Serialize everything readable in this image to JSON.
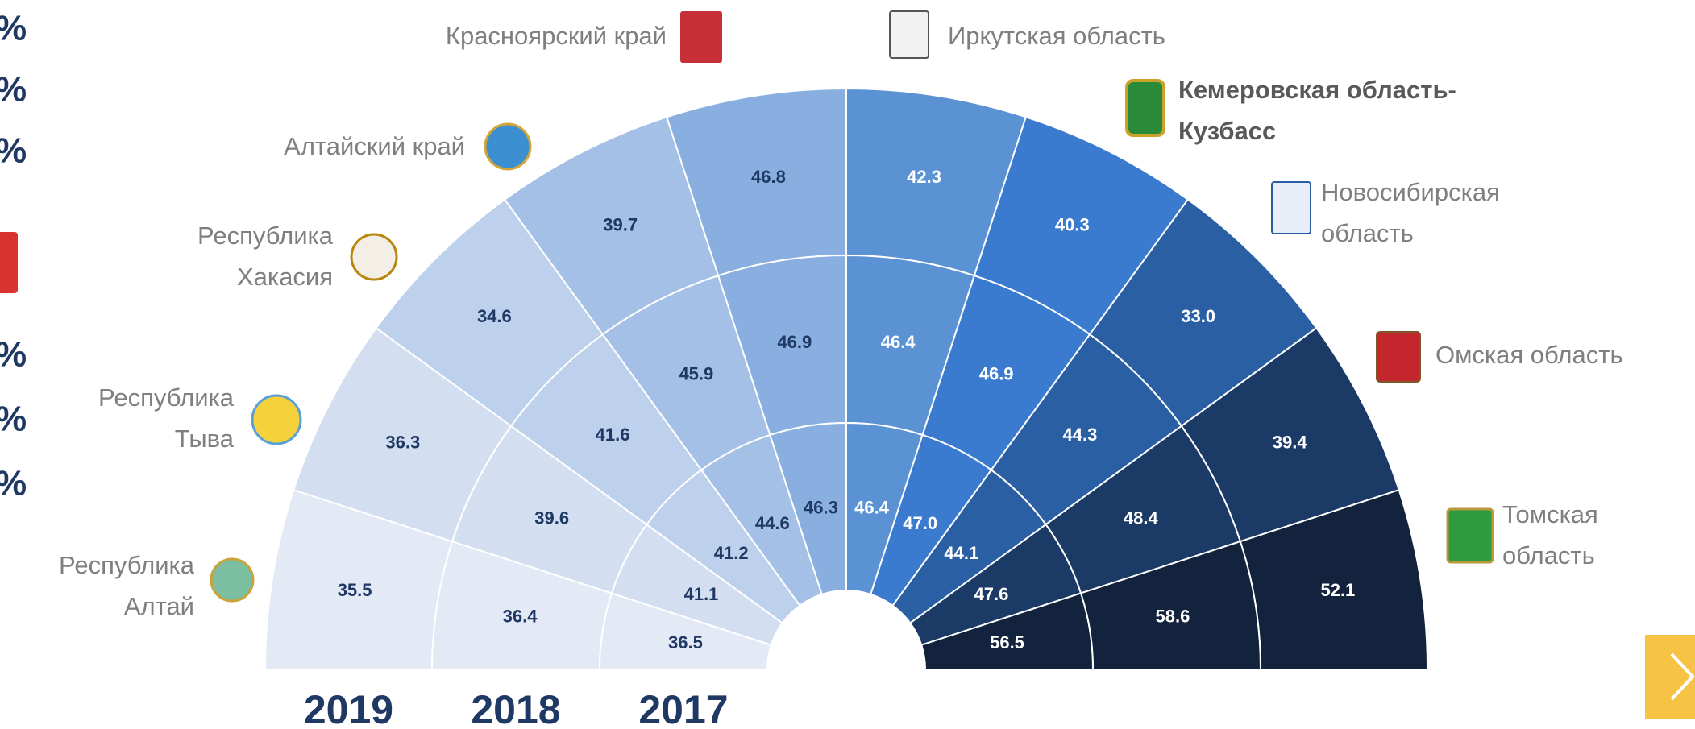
{
  "chart_data": {
    "type": "semicircle-sunburst",
    "categories": [
      [
        "Республика",
        "Алтай"
      ],
      [
        "Республика",
        "Тыва"
      ],
      [
        "Республика",
        "Хакасия"
      ],
      [
        "Алтайский край"
      ],
      [
        "Красноярский край"
      ],
      [
        "Иркутская область"
      ],
      [
        "Кемеровская область-",
        "Кузбасс"
      ],
      [
        "Новосибирская",
        "область"
      ],
      [
        "Омская область"
      ],
      [
        "Томская",
        "область"
      ]
    ],
    "colors": [
      "#e3e9f5",
      "#d3dff1",
      "#bdd0ec",
      "#a4c0e6",
      "#88afe0",
      "#5b92d4",
      "#3a7bcf",
      "#2b5fa3",
      "#1c3a66",
      "#13223d"
    ],
    "highlight": 6,
    "series": [
      {
        "name": "2019",
        "values": [
          35.5,
          36.3,
          34.6,
          39.7,
          46.8,
          42.3,
          40.3,
          33,
          39.4,
          52.1
        ],
        "value_labels": [
          "35.5",
          "36.3",
          "34.6",
          "39.7",
          "46.8",
          "42.3",
          "40.3",
          "33.0",
          "39.4",
          "52.1"
        ]
      },
      {
        "name": "2018",
        "values": [
          36.4,
          39.6,
          41.6,
          45.9,
          46.9,
          46.4,
          46.9,
          44.3,
          48.4,
          58.6
        ],
        "value_labels": [
          "36.4",
          "39.6",
          "41.6",
          "45.9",
          "46.9",
          "46.4",
          "46.9",
          "44.3",
          "48.4",
          "58.6"
        ]
      },
      {
        "name": "2017",
        "values": [
          36.5,
          41.1,
          41.2,
          44.6,
          46.3,
          46.4,
          47,
          44.1,
          47.6,
          56.5
        ],
        "value_labels": [
          "36.5",
          "41.1",
          "41.2",
          "44.6",
          "46.3",
          "46.4",
          "47.0",
          "44.1",
          "47.6",
          "56.5"
        ]
      }
    ],
    "side_marks": [
      "%",
      "%",
      "%",
      "%",
      "%",
      "%"
    ]
  }
}
